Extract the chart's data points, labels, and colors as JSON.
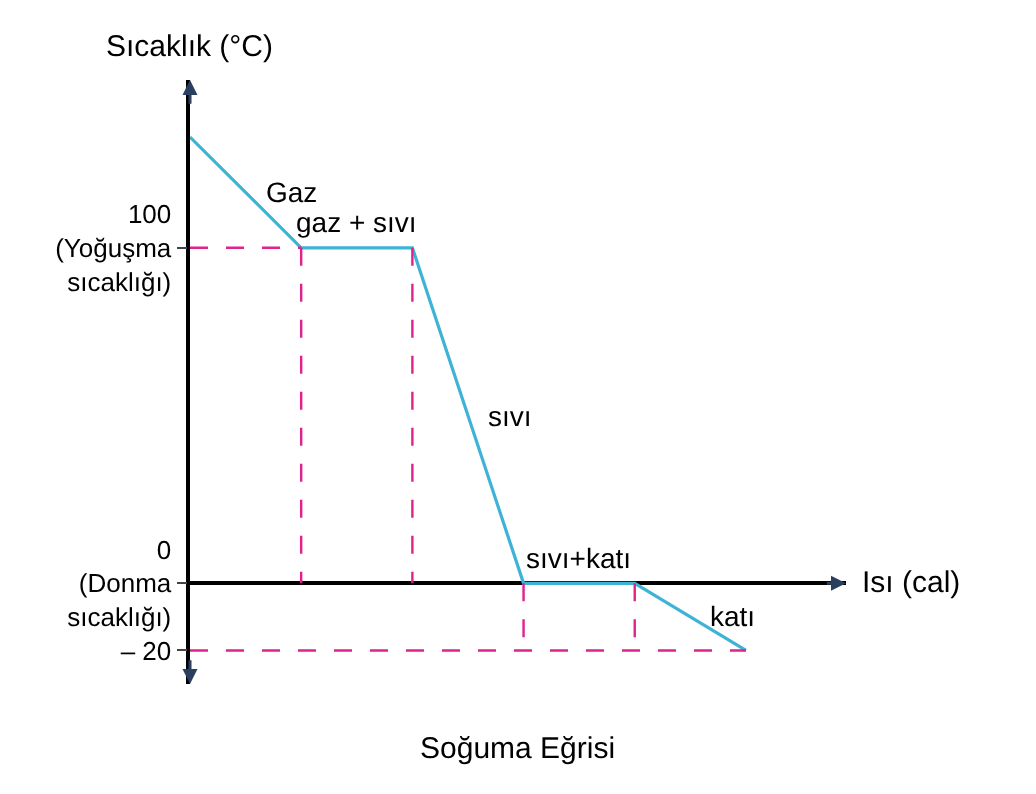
{
  "chart_data": {
    "type": "line",
    "title": "Soğuma Eğrisi",
    "ylabel": "Sıcaklık (°C)",
    "xlabel": "Isı (cal)",
    "categories": [
      null,
      null,
      null,
      null,
      null,
      null
    ],
    "series": [
      {
        "color": "#3fb3d6",
        "values": [
          133,
          100,
          100,
          0,
          0,
          -20
        ]
      }
    ],
    "ylim": [
      -30,
      150
    ],
    "yticks": [
      {
        "value": 100,
        "label": "100\n(Yoğuşma\nsıcaklığı)"
      },
      {
        "value": 0,
        "label": "0\n(Donma\nsıcaklığı)"
      },
      {
        "value": -20,
        "label": "– 20"
      }
    ],
    "ref_lines": [
      {
        "axis": "y",
        "value": 100,
        "color": "#e0228c",
        "line_style": "dashed"
      },
      {
        "axis": "y",
        "value": -20,
        "color": "#e0228c",
        "line_style": "dashed"
      }
    ],
    "tick_labels": "y",
    "marker": "none",
    "annotations": [
      "Gaz",
      "gaz + sıvı",
      "sıvı",
      "sıvı+katı",
      "katı"
    ]
  }
}
